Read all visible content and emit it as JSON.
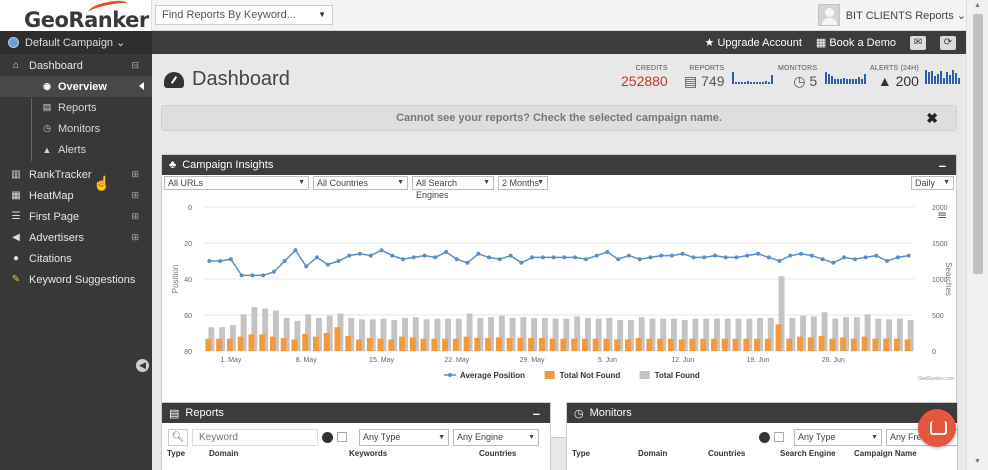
{
  "topbar": {
    "logo": "GeoRanker",
    "search_placeholder": "Find Reports By Keyword...",
    "user_label": "BIT CLIENTS Reports ⌄"
  },
  "campaignbar": {
    "campaign": "Default Campaign ⌄",
    "upgrade": "Upgrade Account",
    "book_demo": "Book a Demo"
  },
  "sidebar": {
    "items": [
      {
        "label": "Dashboard",
        "icon": "home-icon"
      },
      {
        "label": "RankTracker",
        "icon": "bar-chart-icon"
      },
      {
        "label": "HeatMap",
        "icon": "grid-icon"
      },
      {
        "label": "First Page",
        "icon": "list-icon"
      },
      {
        "label": "Advertisers",
        "icon": "megaphone-icon"
      },
      {
        "label": "Citations",
        "icon": "comments-icon"
      },
      {
        "label": "Keyword Suggestions",
        "icon": "pen-icon"
      }
    ],
    "sub_items": [
      {
        "label": "Overview",
        "icon": "dashboard-icon"
      },
      {
        "label": "Reports",
        "icon": "file-icon"
      },
      {
        "label": "Monitors",
        "icon": "clock-icon"
      },
      {
        "label": "Alerts",
        "icon": "warning-icon"
      }
    ]
  },
  "dashboard": {
    "title": "Dashboard",
    "stats": {
      "credits_label": "CREDITS",
      "credits_value": "252880",
      "reports_label": "REPORTS",
      "reports_value": "749",
      "monitors_label": "MONITORS",
      "monitors_value": "5",
      "alerts_label": "ALERTS (24H)",
      "alerts_value": "200"
    },
    "notice": "Cannot see your reports? Check the selected campaign name."
  },
  "insights": {
    "title": "Campaign Insights",
    "filters": {
      "urls": "All URLs",
      "countries": "All Countries",
      "engines": "All Search Engines",
      "period": "2 Months",
      "granularity": "Daily"
    },
    "credit": "GeoRanker.com"
  },
  "chart_data": {
    "type": "line",
    "x_tick_labels": [
      "1. May",
      "8. May",
      "15. May",
      "22. May",
      "29. May",
      "5. Jun",
      "12. Jun",
      "19. Jun",
      "26. Jun"
    ],
    "y_left_label": "Position",
    "y_left_ticks": [
      "0",
      "20",
      "40",
      "60",
      "80"
    ],
    "y_left_range": [
      0,
      80
    ],
    "y_left_reversed": true,
    "y_right_label": "Searches",
    "y_right_ticks": [
      "2000",
      "1500",
      "1000",
      "500",
      "0"
    ],
    "y_right_range": [
      0,
      2000
    ],
    "legend_position": "bottom",
    "series": [
      {
        "name": "Average Position",
        "color": "#5b8fc7",
        "axis": "left",
        "values": [
          30,
          30,
          29,
          38,
          38,
          38,
          36,
          30,
          24,
          33,
          28,
          32,
          30,
          27,
          26,
          27,
          24,
          27,
          29,
          28,
          27,
          28,
          25,
          29,
          31,
          26,
          28,
          29,
          27,
          31,
          28,
          28,
          28,
          28,
          28,
          29,
          27,
          25,
          29,
          27,
          29,
          28,
          27,
          27,
          26,
          28,
          28,
          27,
          28,
          28,
          27,
          26,
          28,
          30,
          27,
          26,
          27,
          29,
          31,
          28,
          29,
          28,
          27,
          30,
          28,
          27
        ]
      },
      {
        "name": "Total Not Found",
        "color": "#f39a3c",
        "axis": "right",
        "values": [
          170,
          170,
          170,
          200,
          230,
          230,
          200,
          180,
          160,
          240,
          200,
          250,
          330,
          210,
          160,
          180,
          170,
          160,
          200,
          190,
          170,
          170,
          170,
          170,
          200,
          180,
          180,
          190,
          180,
          180,
          180,
          180,
          170,
          170,
          170,
          170,
          170,
          170,
          160,
          160,
          180,
          170,
          170,
          170,
          160,
          170,
          170,
          170,
          170,
          170,
          170,
          170,
          170,
          370,
          170,
          200,
          190,
          210,
          170,
          190,
          170,
          200,
          170,
          170,
          170,
          160
        ]
      },
      {
        "name": "Total Found",
        "color": "#c4c4c4",
        "axis": "right",
        "values": [
          330,
          330,
          360,
          510,
          610,
          590,
          560,
          460,
          420,
          510,
          460,
          490,
          520,
          460,
          440,
          440,
          450,
          430,
          460,
          470,
          440,
          450,
          450,
          450,
          520,
          460,
          470,
          490,
          460,
          470,
          460,
          460,
          450,
          450,
          480,
          460,
          450,
          460,
          430,
          430,
          470,
          450,
          450,
          450,
          430,
          450,
          450,
          450,
          450,
          450,
          450,
          460,
          460,
          1040,
          460,
          490,
          480,
          540,
          450,
          470,
          470,
          510,
          450,
          440,
          450,
          430
        ]
      }
    ]
  },
  "reports_panel": {
    "title": "Reports",
    "keyword_placeholder": "Keyword",
    "type_filter": "Any Type",
    "engine_filter": "Any Engine",
    "columns": [
      "Type",
      "Domain",
      "Keywords",
      "Countries"
    ]
  },
  "monitors_panel": {
    "title": "Monitors",
    "type_filter": "Any Type",
    "freq_filter": "Any Freq",
    "columns": [
      "Type",
      "Domain",
      "Countries",
      "Search Engine",
      "Campaign Name"
    ]
  }
}
